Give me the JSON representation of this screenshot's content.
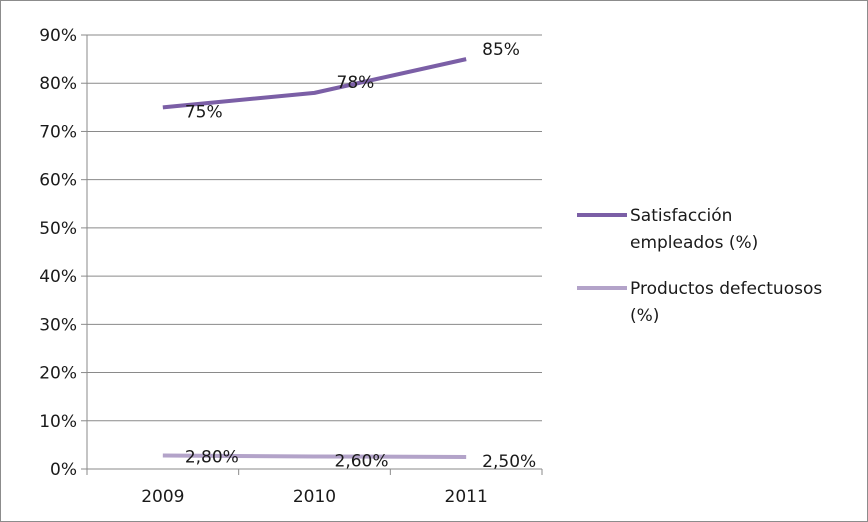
{
  "chart_data": {
    "type": "line",
    "categories": [
      "2009",
      "2010",
      "2011"
    ],
    "series": [
      {
        "name": "Satisfacción empleados (%)",
        "name_lines": [
          "Satisfacción",
          "empleados (%)"
        ],
        "values": [
          75,
          78,
          85
        ],
        "labels": [
          "75%",
          "78%",
          "85%"
        ],
        "color": "#7b5fa6"
      },
      {
        "name": "Productos defectuosos (%)",
        "name_lines": [
          "Productos defectuosos",
          "(%)"
        ],
        "values": [
          2.8,
          2.6,
          2.5
        ],
        "labels": [
          "2,80%",
          "2,60%",
          "2,50%"
        ],
        "color": "#b3a3c9"
      }
    ],
    "y_ticks": [
      "0%",
      "10%",
      "20%",
      "30%",
      "40%",
      "50%",
      "60%",
      "70%",
      "80%",
      "90%"
    ],
    "ylim": [
      0,
      90
    ],
    "grid": true,
    "legend": "right",
    "title": "",
    "xlabel": "",
    "ylabel": ""
  }
}
